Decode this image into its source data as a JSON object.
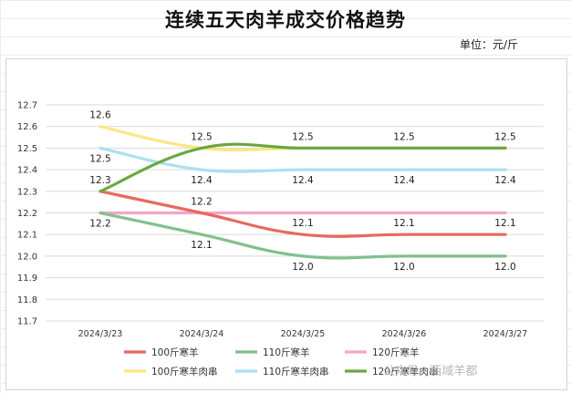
{
  "title": "连续五天肉羊成交价格趋势",
  "unit": "单位：元/斤",
  "watermark": "公众号 · 西域羊都",
  "chart_data": {
    "type": "line",
    "categories": [
      "2024/3/23",
      "2024/3/24",
      "2024/3/25",
      "2024/3/26",
      "2024/3/27"
    ],
    "ylim": [
      11.7,
      12.7
    ],
    "yticks": [
      "11.7",
      "11.8",
      "11.9",
      "12.0",
      "12.1",
      "12.2",
      "12.3",
      "12.4",
      "12.5",
      "12.6",
      "12.7"
    ],
    "grid": true,
    "legend_position": "bottom",
    "series": [
      {
        "name": "100斤寒羊",
        "values": [
          12.3,
          12.2,
          12.1,
          12.1,
          12.1
        ],
        "color": "#e8685f",
        "labels": [
          "12.3",
          "12.2",
          "12.1",
          "12.1",
          "12.1"
        ],
        "label_pos": "above"
      },
      {
        "name": "110斤寒羊",
        "values": [
          12.2,
          12.1,
          12.0,
          12.0,
          12.0
        ],
        "color": "#82c08e",
        "labels": [
          "12.2",
          "12.1",
          "12.0",
          "12.0",
          "12.0"
        ],
        "label_pos": "below"
      },
      {
        "name": "120斤寒羊",
        "values": [
          12.2,
          12.2,
          12.2,
          12.2,
          12.2
        ],
        "color": "#f4a6c3",
        "labels": [
          "",
          "",
          "",
          "",
          ""
        ],
        "label_pos": "above"
      },
      {
        "name": "100斤寒羊肉串",
        "values": [
          12.6,
          12.5,
          12.5,
          12.5,
          12.5
        ],
        "color": "#fde685",
        "labels": [
          "12.6",
          "12.5",
          "12.5",
          "12.5",
          "12.5"
        ],
        "label_pos": "above"
      },
      {
        "name": "110斤寒羊肉串",
        "values": [
          12.5,
          12.4,
          12.4,
          12.4,
          12.4
        ],
        "color": "#a8e2f0",
        "labels": [
          "12.5",
          "12.4",
          "12.4",
          "12.4",
          "12.4"
        ],
        "label_pos": "below"
      },
      {
        "name": "120斤寒羊肉串",
        "values": [
          12.3,
          12.5,
          12.5,
          12.5,
          12.5
        ],
        "color": "#6aa840",
        "labels": [
          "",
          "",
          "",
          "",
          ""
        ],
        "label_pos": "above"
      }
    ]
  }
}
